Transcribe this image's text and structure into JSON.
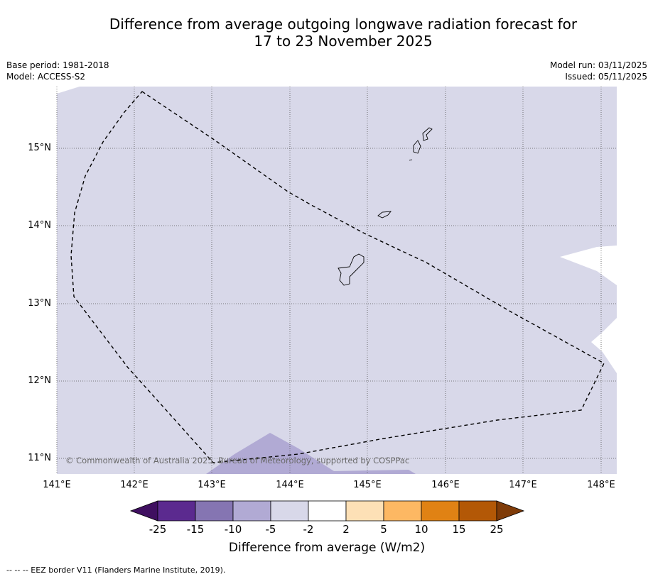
{
  "header": {
    "title_line1": "Difference from average outgoing longwave radiation forecast for",
    "title_line2": "17 to 23 November 2025",
    "base_period": "Base period: 1981-2018",
    "model": "Model: ACCESS-S2",
    "model_run": "Model run: 03/11/2025",
    "issued": "Issued: 05/11/2025"
  },
  "map": {
    "lat_labels": [
      "15°N",
      "14°N",
      "13°N",
      "12°N",
      "11°N"
    ],
    "lon_labels": [
      "141°E",
      "142°E",
      "143°E",
      "144°E",
      "145°E",
      "146°E",
      "147°E",
      "148°E"
    ],
    "copyright": "© Commonwealth of Australia 2025, Bureau of Meteorology, supported by COSPPac",
    "colors": {
      "background_field": "#d8d8e9",
      "darker_field": "#b1aad4",
      "white_field": "#ffffff"
    }
  },
  "colorbar": {
    "ticks": [
      "-25",
      "-15",
      "-10",
      "-5",
      "-2",
      "2",
      "5",
      "10",
      "15",
      "25"
    ],
    "colors": [
      "#3f0f60",
      "#5b2a8f",
      "#8575b2",
      "#b1aad4",
      "#d8d8e9",
      "#ffffff",
      "#fde0b6",
      "#fdb863",
      "#e08214",
      "#b35806",
      "#7f3b08"
    ],
    "label": "Difference from average (W/m2)"
  },
  "footnote": "--  --  -- EEZ border V11 (Flanders Marine Institute, 2019)."
}
